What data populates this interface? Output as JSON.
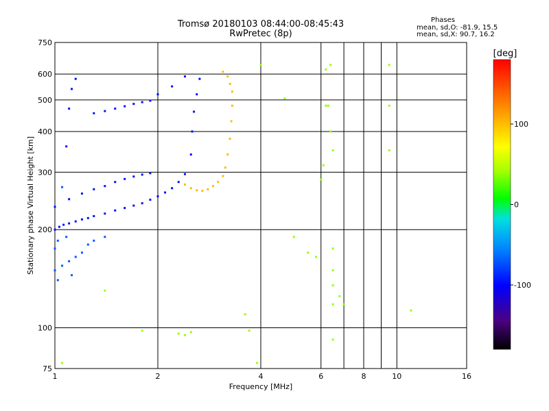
{
  "header": {
    "title": "Tromsø 20180103 08:44:00-08:45:43",
    "subtitle": "RwPretec (8p)"
  },
  "phase_info": {
    "heading": "Phases",
    "line_o": "mean, sd,O: -81.9, 15.5",
    "line_x": "mean, sd,X:  90.7, 16.2"
  },
  "colorbar": {
    "label": "[deg]",
    "range": [
      -180,
      180
    ],
    "ticks": [
      100,
      0,
      -100
    ],
    "tick_labels": [
      "100",
      "0",
      "-100"
    ]
  },
  "chart_data": {
    "type": "scatter",
    "xlabel": "Frequency [MHz]",
    "ylabel": "Stationary phase Virtual Height [km]",
    "x_scale": "log",
    "y_scale": "log",
    "xlim": [
      1,
      16
    ],
    "ylim": [
      75,
      750
    ],
    "x_ticks": [
      1,
      2,
      4,
      6,
      8,
      10,
      16
    ],
    "x_tick_labels": [
      "1",
      "2",
      "4",
      "6",
      "8",
      "10",
      "16"
    ],
    "y_ticks": [
      75,
      100,
      200,
      300,
      400,
      500,
      600,
      750
    ],
    "y_tick_labels": [
      "75",
      "100",
      "200",
      "300",
      "400",
      "500",
      "600",
      "750"
    ],
    "grid": true,
    "x_minor_gridlines": [
      6,
      7,
      8,
      9
    ],
    "series": [
      {
        "mode": "O",
        "phase_deg": -95,
        "points": [
          [
            1.0,
            200
          ],
          [
            1.03,
            204
          ],
          [
            1.06,
            207
          ],
          [
            1.1,
            209
          ],
          [
            1.15,
            212
          ],
          [
            1.2,
            215
          ],
          [
            1.25,
            217
          ],
          [
            1.3,
            220
          ],
          [
            1.4,
            224
          ],
          [
            1.5,
            229
          ],
          [
            1.6,
            233
          ],
          [
            1.7,
            237
          ],
          [
            1.8,
            241
          ],
          [
            1.9,
            247
          ],
          [
            2.0,
            253
          ],
          [
            2.1,
            260
          ],
          [
            2.2,
            268
          ],
          [
            2.3,
            280
          ],
          [
            2.4,
            296
          ],
          [
            2.5,
            340
          ],
          [
            2.52,
            400
          ],
          [
            2.55,
            460
          ],
          [
            2.6,
            520
          ],
          [
            2.65,
            580
          ],
          [
            2.0,
            520
          ],
          [
            2.2,
            550
          ],
          [
            2.4,
            590
          ],
          [
            1.0,
            235
          ],
          [
            1.1,
            248
          ],
          [
            1.2,
            258
          ],
          [
            1.3,
            266
          ],
          [
            1.4,
            272
          ],
          [
            1.5,
            280
          ],
          [
            1.6,
            286
          ],
          [
            1.7,
            291
          ],
          [
            1.8,
            295
          ],
          [
            1.9,
            298
          ],
          [
            1.3,
            455
          ],
          [
            1.4,
            462
          ],
          [
            1.5,
            470
          ],
          [
            1.6,
            478
          ],
          [
            1.7,
            486
          ],
          [
            1.8,
            492
          ],
          [
            1.9,
            497
          ],
          [
            1.1,
            470
          ],
          [
            1.12,
            540
          ],
          [
            1.15,
            580
          ],
          [
            1.08,
            360
          ]
        ]
      },
      {
        "mode": "O-low",
        "phase_deg": -70,
        "points": [
          [
            1.0,
            150
          ],
          [
            1.05,
            155
          ],
          [
            1.1,
            160
          ],
          [
            1.15,
            165
          ],
          [
            1.2,
            170
          ],
          [
            1.0,
            175
          ],
          [
            1.02,
            185
          ],
          [
            1.08,
            190
          ],
          [
            1.12,
            145
          ],
          [
            1.02,
            140
          ],
          [
            1.25,
            180
          ],
          [
            1.3,
            185
          ],
          [
            1.4,
            190
          ],
          [
            1.05,
            270
          ]
        ]
      },
      {
        "mode": "X",
        "phase_deg": 100,
        "points": [
          [
            2.4,
            275
          ],
          [
            2.5,
            268
          ],
          [
            2.6,
            264
          ],
          [
            2.7,
            263
          ],
          [
            2.8,
            266
          ],
          [
            2.9,
            272
          ],
          [
            3.0,
            280
          ],
          [
            3.1,
            292
          ],
          [
            3.15,
            310
          ],
          [
            3.2,
            340
          ],
          [
            3.25,
            380
          ],
          [
            3.28,
            430
          ],
          [
            3.3,
            480
          ],
          [
            3.3,
            530
          ],
          [
            3.25,
            560
          ],
          [
            3.2,
            590
          ],
          [
            3.1,
            610
          ]
        ]
      },
      {
        "mode": "scattered",
        "phase_deg": 40,
        "points": [
          [
            4.0,
            640
          ],
          [
            4.7,
            505
          ],
          [
            5.0,
            190
          ],
          [
            5.5,
            170
          ],
          [
            5.8,
            165
          ],
          [
            6.0,
            285
          ],
          [
            6.3,
            480
          ],
          [
            6.4,
            640
          ],
          [
            6.4,
            400
          ],
          [
            6.5,
            350
          ],
          [
            6.5,
            175
          ],
          [
            6.5,
            150
          ],
          [
            6.5,
            135
          ],
          [
            6.5,
            118
          ],
          [
            6.5,
            92
          ],
          [
            6.8,
            125
          ],
          [
            7.0,
            118
          ],
          [
            9.5,
            640
          ],
          [
            9.5,
            480
          ],
          [
            9.5,
            350
          ],
          [
            11.0,
            113
          ],
          [
            3.6,
            110
          ],
          [
            3.7,
            98
          ],
          [
            1.8,
            98
          ],
          [
            2.3,
            96
          ],
          [
            2.4,
            95
          ],
          [
            2.5,
            97
          ],
          [
            1.05,
            78
          ],
          [
            1.4,
            130
          ],
          [
            3.9,
            78
          ],
          [
            6.2,
            480
          ],
          [
            6.2,
            620
          ],
          [
            6.1,
            315
          ]
        ]
      }
    ]
  }
}
